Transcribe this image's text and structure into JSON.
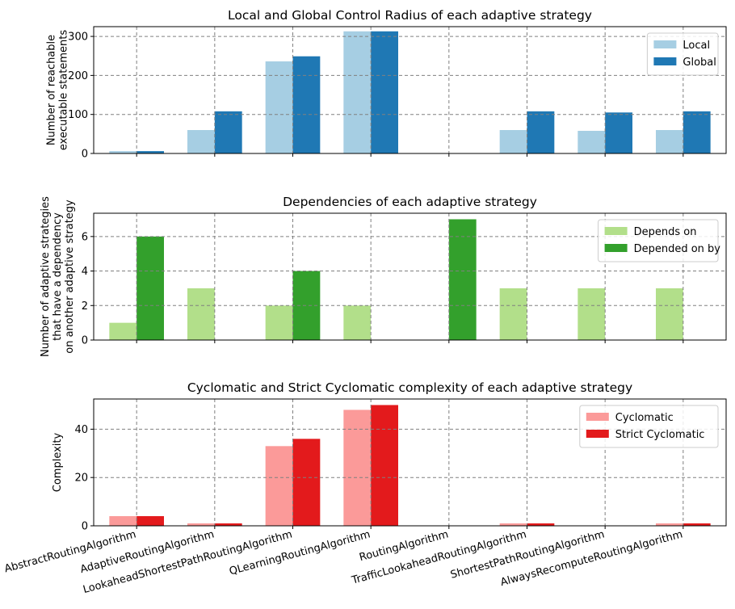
{
  "categories": [
    "AbstractRoutingAlgorithm",
    "AdaptiveRoutingAlgorithm",
    "LookaheadShortestPathRoutingAlgorithm",
    "QLearningRoutingAlgorithm",
    "RoutingAlgorithm",
    "TrafficLookaheadRoutingAlgorithm",
    "ShortestPathRoutingAlgorithm",
    "AlwaysRecomputeRoutingAlgorithm"
  ],
  "chart_data": [
    {
      "type": "bar",
      "title": "Local and Global Control Radius of each adaptive strategy",
      "xlabel": "",
      "ylabel": [
        "Number of reachable",
        "executable statements"
      ],
      "ylim": [
        0,
        325
      ],
      "yticks": [
        0,
        100,
        200,
        300
      ],
      "grid": true,
      "legend_position": "top-right",
      "series": [
        {
          "name": "Local",
          "color": "#a6cee3",
          "values": [
            6,
            60,
            236,
            313,
            0,
            60,
            58,
            60
          ]
        },
        {
          "name": "Global",
          "color": "#1f78b4",
          "values": [
            6,
            108,
            249,
            313,
            0,
            108,
            105,
            108
          ]
        }
      ]
    },
    {
      "type": "bar",
      "title": "Dependencies of each adaptive strategy",
      "xlabel": "",
      "ylabel": [
        "Number of adaptive strategies",
        "that have a dependency",
        "on another adaptive strategy"
      ],
      "ylim": [
        0,
        7.35
      ],
      "yticks": [
        0,
        2,
        4,
        6
      ],
      "grid": true,
      "legend_position": "top-right",
      "series": [
        {
          "name": "Depends on",
          "color": "#b2df8a",
          "values": [
            1,
            3,
            2,
            2,
            0,
            3,
            3,
            3
          ]
        },
        {
          "name": "Depended on by",
          "color": "#33a02c",
          "values": [
            6,
            0,
            4,
            0,
            7,
            0,
            0,
            0
          ]
        }
      ]
    },
    {
      "type": "bar",
      "title": "Cyclomatic and Strict Cyclomatic complexity of each adaptive strategy",
      "xlabel": "",
      "ylabel": [
        "Complexity"
      ],
      "ylim": [
        0,
        52.5
      ],
      "yticks": [
        0,
        20,
        40
      ],
      "grid": true,
      "legend_position": "top-right",
      "series": [
        {
          "name": "Cyclomatic",
          "color": "#fb9a99",
          "values": [
            4,
            1,
            33,
            48,
            0,
            1,
            0,
            1
          ]
        },
        {
          "name": "Strict Cyclomatic",
          "color": "#e31a1c",
          "values": [
            4,
            1,
            36,
            50,
            0,
            1,
            0,
            1
          ]
        }
      ]
    }
  ]
}
